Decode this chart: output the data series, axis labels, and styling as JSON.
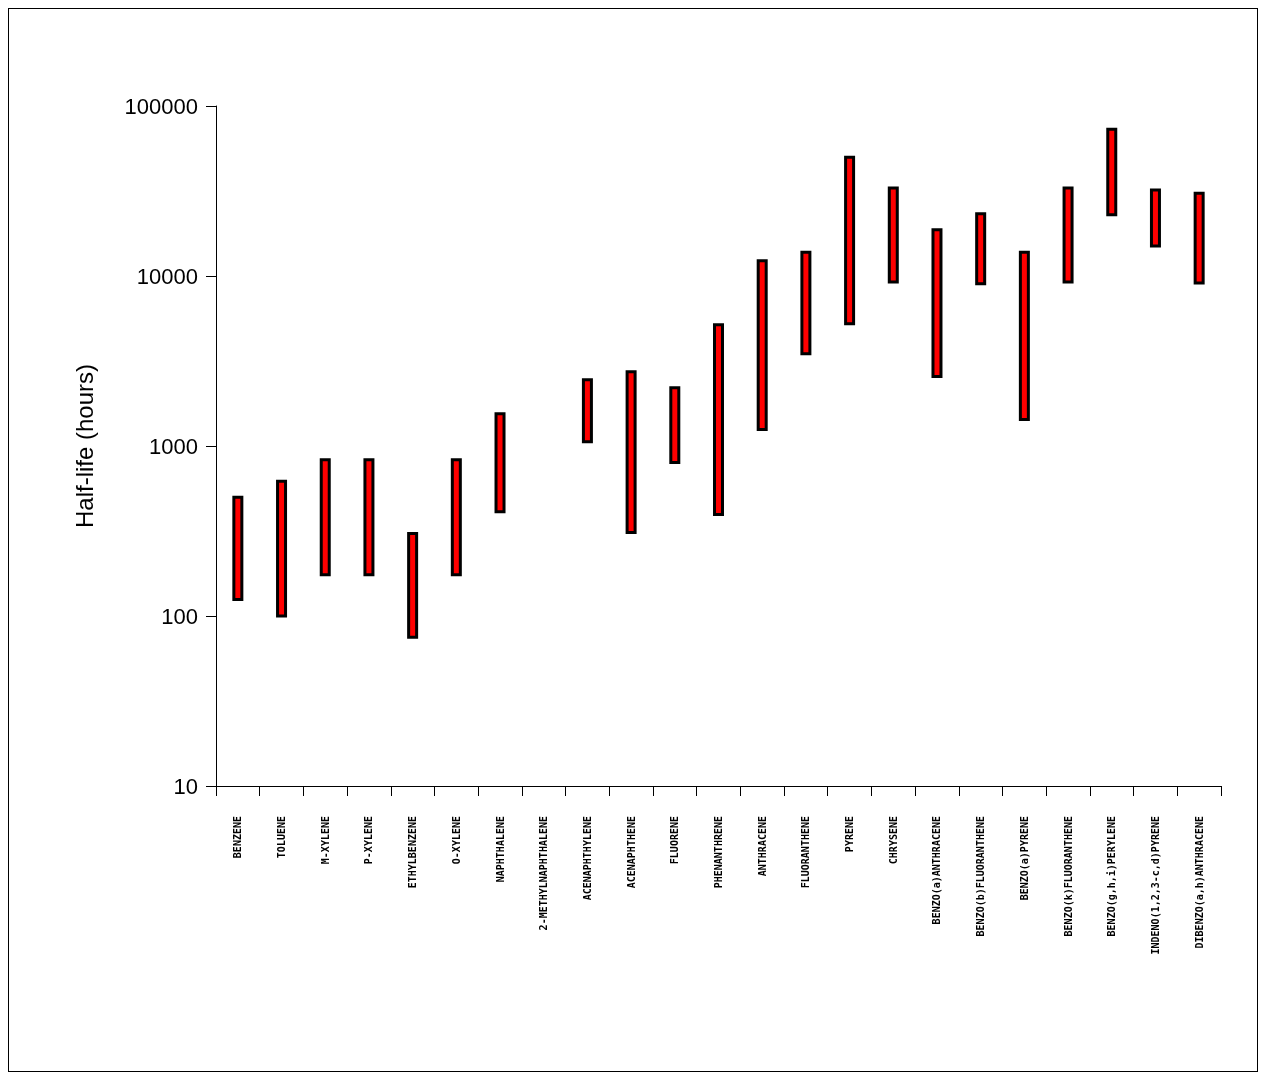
{
  "chart_data": {
    "type": "bar",
    "ylabel": "Half-life (hours)",
    "log": true,
    "ylim": [
      10,
      100000
    ],
    "yticks": [
      10,
      100,
      1000,
      10000,
      100000
    ],
    "grid": false,
    "color": "#ff0000",
    "categories": [
      "BENZENE",
      "TOLUENE",
      "M-XYLENE",
      "P-XYLENE",
      "ETHYLBENZENE",
      "O-XYLENE",
      "NAPHTHALENE",
      "2-METHYLNAPHTHALENE",
      "ACENAPHTHYLENE",
      "ACENAPHTHENE",
      "FLUORENE",
      "PHENANTHRENE",
      "ANTHRACENE",
      "FLUORANTHENE",
      "PYRENE",
      "CHRYSENE",
      "BENZO(a)ANTHRACENE",
      "BENZO(b)FLUORANTHENE",
      "BENZO(a)PYRENE",
      "BENZO(k)FLUORANTHENE",
      "BENZO(g,h,i)PERYLENE",
      "INDENO(1,2,3-c,d)PYRENE",
      "DIBENZO(a,h)ANTHRACENE"
    ],
    "base": [
      125,
      100,
      175,
      175,
      75,
      175,
      410,
      null,
      1060,
      310,
      800,
      395,
      1250,
      3490,
      5230,
      9230,
      2560,
      8990,
      1430,
      9230,
      22900,
      15000,
      9100
    ],
    "values": [
      375,
      520,
      655,
      655,
      231,
      655,
      1140,
      null,
      1390,
      2420,
      1400,
      4765,
      11050,
      10310,
      44770,
      23670,
      16140,
      14210,
      12370,
      23670,
      50200,
      17000,
      21600
    ]
  }
}
